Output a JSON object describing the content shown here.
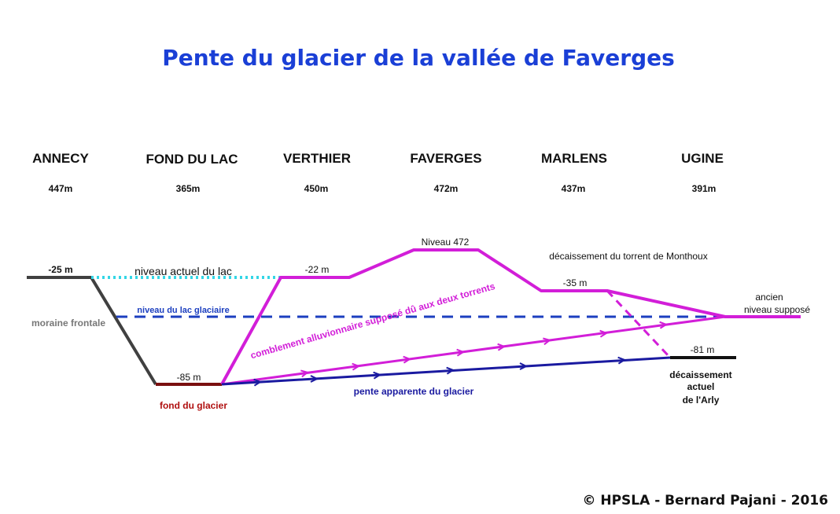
{
  "title": "Pente du glacier de la vallée de Faverges",
  "places": [
    {
      "name": "ANNECY",
      "altitude": "447m"
    },
    {
      "name": "FOND DU LAC",
      "altitude": "365m"
    },
    {
      "name": "VERTHIER",
      "altitude": "450m"
    },
    {
      "name": "FAVERGES",
      "altitude": "472m"
    },
    {
      "name": "MARLENS",
      "altitude": "437m"
    },
    {
      "name": "UGINE",
      "altitude": "391m"
    }
  ],
  "labels": {
    "annecy_depth": "-25 m",
    "lake_level": "niveau actuel du lac",
    "glacial_lake": "niveau du lac glaciaire",
    "moraine": "moraine frontale",
    "lake_bottom_depth": "-85 m",
    "glacier_bottom": "fond du glacier",
    "verthier_depth": "-22 m",
    "faverges_level": "Niveau 472",
    "monthoux": "décaissement du torrent de Monthoux",
    "marlens_depth": "-35 m",
    "fill": "comblement alluvionnaire supposé dû aux deux torrents",
    "glacier_slope": "pente apparente du glacier",
    "ugine_depth": "-81 m",
    "arly_line1": "décaissement",
    "arly_line2": "actuel",
    "arly_line3": "de l'Arly",
    "old_level_line1": "ancien",
    "old_level_line2": "niveau supposé"
  },
  "copyright": "© HPSLA - Bernard Pajani - 2016",
  "colors": {
    "title": "#1a3fd6",
    "terrain": "#404040",
    "lake_surface": "#33d6e6",
    "glacial_lake": "#1c3fbf",
    "glacier_bottom": "#7a0f0f",
    "fill_profile": "#d21ed8",
    "glacier_slope": "#1a1aa0"
  }
}
